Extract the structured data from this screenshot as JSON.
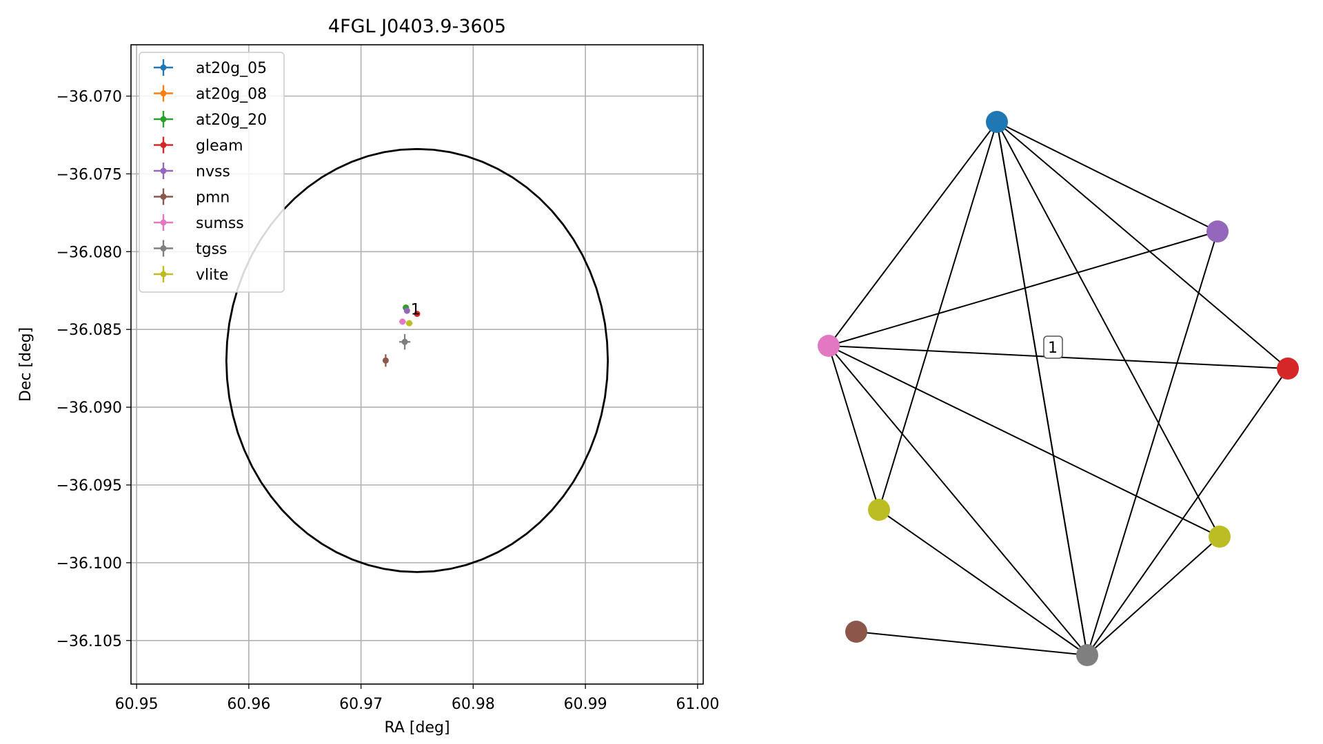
{
  "chart_data": [
    {
      "type": "scatter",
      "title": "4FGL J0403.9-3605",
      "xlabel": "RA [deg]",
      "ylabel": "Dec [deg]",
      "xlim": [
        60.9495,
        61.0005
      ],
      "ylim": [
        -36.1078,
        -36.0667
      ],
      "xticks": [
        60.95,
        60.96,
        60.97,
        60.98,
        60.99,
        61.0
      ],
      "xtick_labels": [
        "60.95",
        "60.96",
        "60.97",
        "60.98",
        "60.99",
        "61.00"
      ],
      "yticks": [
        -36.07,
        -36.075,
        -36.08,
        -36.085,
        -36.09,
        -36.095,
        -36.1,
        -36.105
      ],
      "ytick_labels": [
        "−36.070",
        "−36.075",
        "−36.080",
        "−36.085",
        "−36.090",
        "−36.095",
        "−36.100",
        "−36.105"
      ],
      "grid": true,
      "legend_position": "top-left",
      "ellipse": {
        "center": [
          60.975,
          -36.087
        ],
        "ra_semi_axis": 0.017,
        "dec_semi_axis": 0.0136
      },
      "series": [
        {
          "name": "at20g_05",
          "color": "#1f77b4",
          "x": 60.974,
          "y": -36.0836,
          "xerr": 0.0001,
          "yerr": 0.0001
        },
        {
          "name": "at20g_08",
          "color": "#ff7f0e",
          "x": 60.974,
          "y": -36.0836,
          "xerr": 0.0001,
          "yerr": 0.0001
        },
        {
          "name": "at20g_20",
          "color": "#2ca02c",
          "x": 60.974,
          "y": -36.0836,
          "xerr": 0.0001,
          "yerr": 0.0001
        },
        {
          "name": "gleam",
          "color": "#d62728",
          "x": 60.975,
          "y": -36.084,
          "xerr": 0.0001,
          "yerr": 0.0001
        },
        {
          "name": "nvss",
          "color": "#9467bd",
          "x": 60.9741,
          "y": -36.0838,
          "xerr": 0.0001,
          "yerr": 0.0002
        },
        {
          "name": "pmn",
          "color": "#8c564b",
          "x": 60.9722,
          "y": -36.087,
          "xerr": 0.0001,
          "yerr": 0.0004
        },
        {
          "name": "sumss",
          "color": "#e377c2",
          "x": 60.9737,
          "y": -36.0845,
          "xerr": 0.0003,
          "yerr": 0.0002
        },
        {
          "name": "tgss",
          "color": "#7f7f7f",
          "x": 60.9739,
          "y": -36.0858,
          "xerr": 0.0005,
          "yerr": 0.0005
        },
        {
          "name": "vlite",
          "color": "#bcbd22",
          "x": 60.9743,
          "y": -36.0846,
          "xerr": 0.0003,
          "yerr": 0.0001
        }
      ],
      "annotations": [
        {
          "text": "1",
          "x": 60.9748,
          "y": -36.084
        }
      ]
    },
    {
      "type": "network",
      "nodes": [
        {
          "id": "at20g",
          "color": "#1f77b4"
        },
        {
          "id": "nvss",
          "color": "#9467bd"
        },
        {
          "id": "gleam",
          "color": "#d62728"
        },
        {
          "id": "vlite_a",
          "color": "#bcbd22"
        },
        {
          "id": "tgss",
          "color": "#7f7f7f"
        },
        {
          "id": "pmn",
          "color": "#8c564b"
        },
        {
          "id": "vlite_b",
          "color": "#bcbd22"
        },
        {
          "id": "sumss",
          "color": "#e377c2"
        }
      ],
      "edges": [
        [
          "at20g",
          "nvss"
        ],
        [
          "at20g",
          "gleam"
        ],
        [
          "at20g",
          "vlite_a"
        ],
        [
          "at20g",
          "tgss"
        ],
        [
          "at20g",
          "vlite_b"
        ],
        [
          "at20g",
          "sumss"
        ],
        [
          "at20g",
          "tgss"
        ],
        [
          "nvss",
          "sumss"
        ],
        [
          "nvss",
          "tgss"
        ],
        [
          "gleam",
          "sumss"
        ],
        [
          "gleam",
          "tgss"
        ],
        [
          "sumss",
          "vlite_b"
        ],
        [
          "sumss",
          "tgss"
        ],
        [
          "sumss",
          "vlite_a"
        ],
        [
          "vlite_b",
          "tgss"
        ],
        [
          "vlite_a",
          "tgss"
        ],
        [
          "pmn",
          "tgss"
        ]
      ],
      "label": "1"
    }
  ]
}
